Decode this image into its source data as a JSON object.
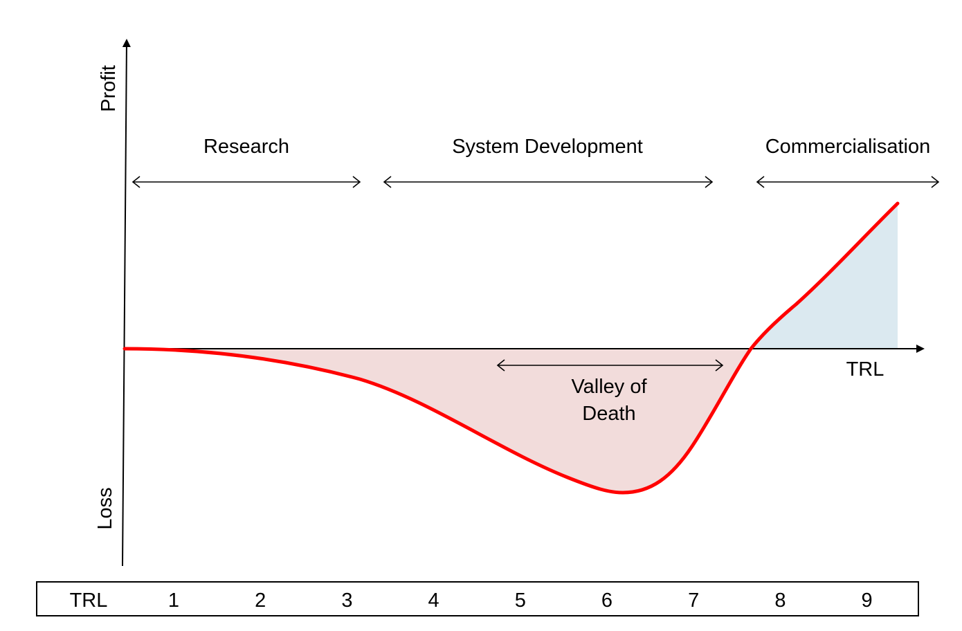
{
  "axes": {
    "y_top_label": "Profit",
    "y_bottom_label": "Loss",
    "x_label": "TRL"
  },
  "phases": [
    {
      "label": "Research"
    },
    {
      "label": "System Development"
    },
    {
      "label": "Commercialisation"
    }
  ],
  "valley": {
    "line1": "Valley of",
    "line2": "Death"
  },
  "trl_row": {
    "header": "TRL",
    "levels": [
      "1",
      "2",
      "3",
      "4",
      "5",
      "6",
      "7",
      "8",
      "9"
    ]
  },
  "colors": {
    "curve": "#ff0000",
    "loss_fill": "#f2dcdb",
    "profit_fill": "#dbe9f0",
    "axis": "#000000"
  }
}
